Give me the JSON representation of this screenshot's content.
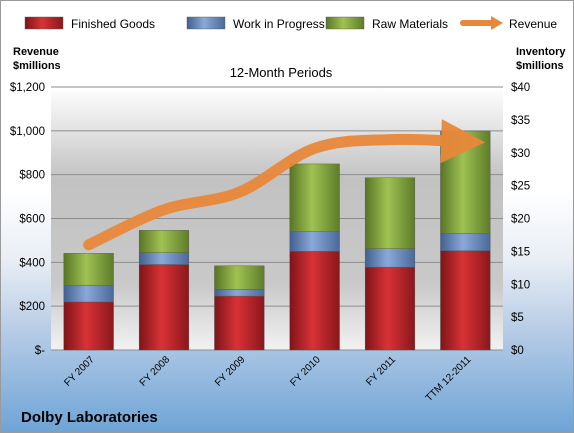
{
  "chart_data": {
    "type": "bar",
    "stacked": true,
    "title": "12-Month Periods",
    "caption": "Dolby Laboratories",
    "categories": [
      "FY 2007",
      "FY 2008",
      "FY 2009",
      "FY 2010",
      "FY 2011",
      "TTM 12-2011"
    ],
    "left_axis": {
      "label_lines": [
        "Revenue",
        "$millions"
      ],
      "ylim": [
        0,
        1200
      ],
      "ticks": [
        0,
        200,
        400,
        600,
        800,
        1000,
        1200
      ],
      "tick_labels": [
        "$-",
        "$200",
        "$400",
        "$600",
        "$800",
        "$1,000",
        "$1,200"
      ]
    },
    "right_axis": {
      "label_lines": [
        "Inventory",
        "$millions"
      ],
      "ylim": [
        0,
        40
      ],
      "ticks": [
        0,
        5,
        10,
        15,
        20,
        25,
        30,
        35,
        40
      ],
      "tick_labels": [
        "$0",
        "$5",
        "$10",
        "$15",
        "$20",
        "$25",
        "$30",
        "$35",
        "$40"
      ]
    },
    "series": [
      {
        "name": "Finished Goods",
        "kind": "bar",
        "axis": "right",
        "color": "#c0262c",
        "values": [
          7.3,
          13.0,
          8.2,
          15.0,
          12.6,
          15.1
        ]
      },
      {
        "name": "Work in Progress",
        "kind": "bar",
        "axis": "right",
        "color": "#6d8fc5",
        "values": [
          2.5,
          1.8,
          1.0,
          3.0,
          2.8,
          2.6
        ]
      },
      {
        "name": "Raw Materials",
        "kind": "bar",
        "axis": "right",
        "color": "#8aae3f",
        "values": [
          4.9,
          3.4,
          3.6,
          10.3,
          10.8,
          15.6
        ]
      },
      {
        "name": "Revenue",
        "kind": "line",
        "axis": "left",
        "color": "#e8883a",
        "values": [
          480,
          640,
          720,
          920,
          960,
          950
        ]
      }
    ],
    "grid": true,
    "legend": "top"
  }
}
